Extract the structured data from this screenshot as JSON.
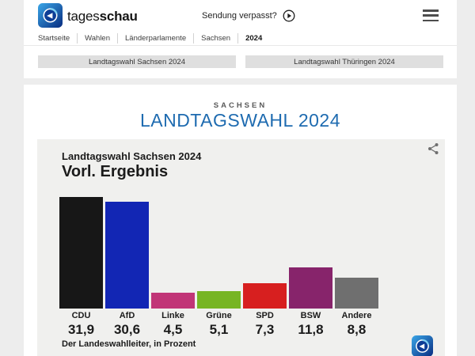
{
  "colors": {
    "accent_blue": "#1e6bb0",
    "page_bg": "#ededed",
    "card_bg": "#f0f0ee",
    "tab_bg": "#dfdfdf"
  },
  "header": {
    "brand": {
      "prefix": "tages",
      "suffix": "schau"
    },
    "missed_broadcast_label": "Sendung verpasst?",
    "icons": {
      "logo": "tagesschau-globe",
      "play": "play-circle",
      "menu": "hamburger"
    },
    "breadcrumb": [
      "Startseite",
      "Wahlen",
      "Länderparlamente",
      "Sachsen",
      "2024"
    ]
  },
  "tabs": [
    {
      "label": "Landtagswahl Sachsen 2024"
    },
    {
      "label": "Landtagswahl Thüringen 2024"
    }
  ],
  "page": {
    "kicker": "SACHSEN",
    "title": "LANDTAGSWAHL 2024"
  },
  "chart_data": {
    "type": "bar",
    "title": "Landtagswahl Sachsen 2024",
    "subtitle": "Vorl. Ergebnis",
    "categories": [
      "CDU",
      "AfD",
      "Linke",
      "Grüne",
      "SPD",
      "BSW",
      "Andere"
    ],
    "values": [
      31.9,
      30.6,
      4.5,
      5.1,
      7.3,
      11.8,
      8.8
    ],
    "value_labels": [
      "31,9",
      "30,6",
      "4,5",
      "5,1",
      "7,3",
      "11,8",
      "8,8"
    ],
    "bar_colors": [
      "#171717",
      "#1226b4",
      "#c13577",
      "#77b524",
      "#d71f1f",
      "#87246b",
      "#6f6f6f"
    ],
    "source": "Der Landeswahlleiter, in Prozent",
    "unit": "Prozent",
    "ylim": [
      0,
      32
    ],
    "grid": false,
    "legend": "none"
  }
}
